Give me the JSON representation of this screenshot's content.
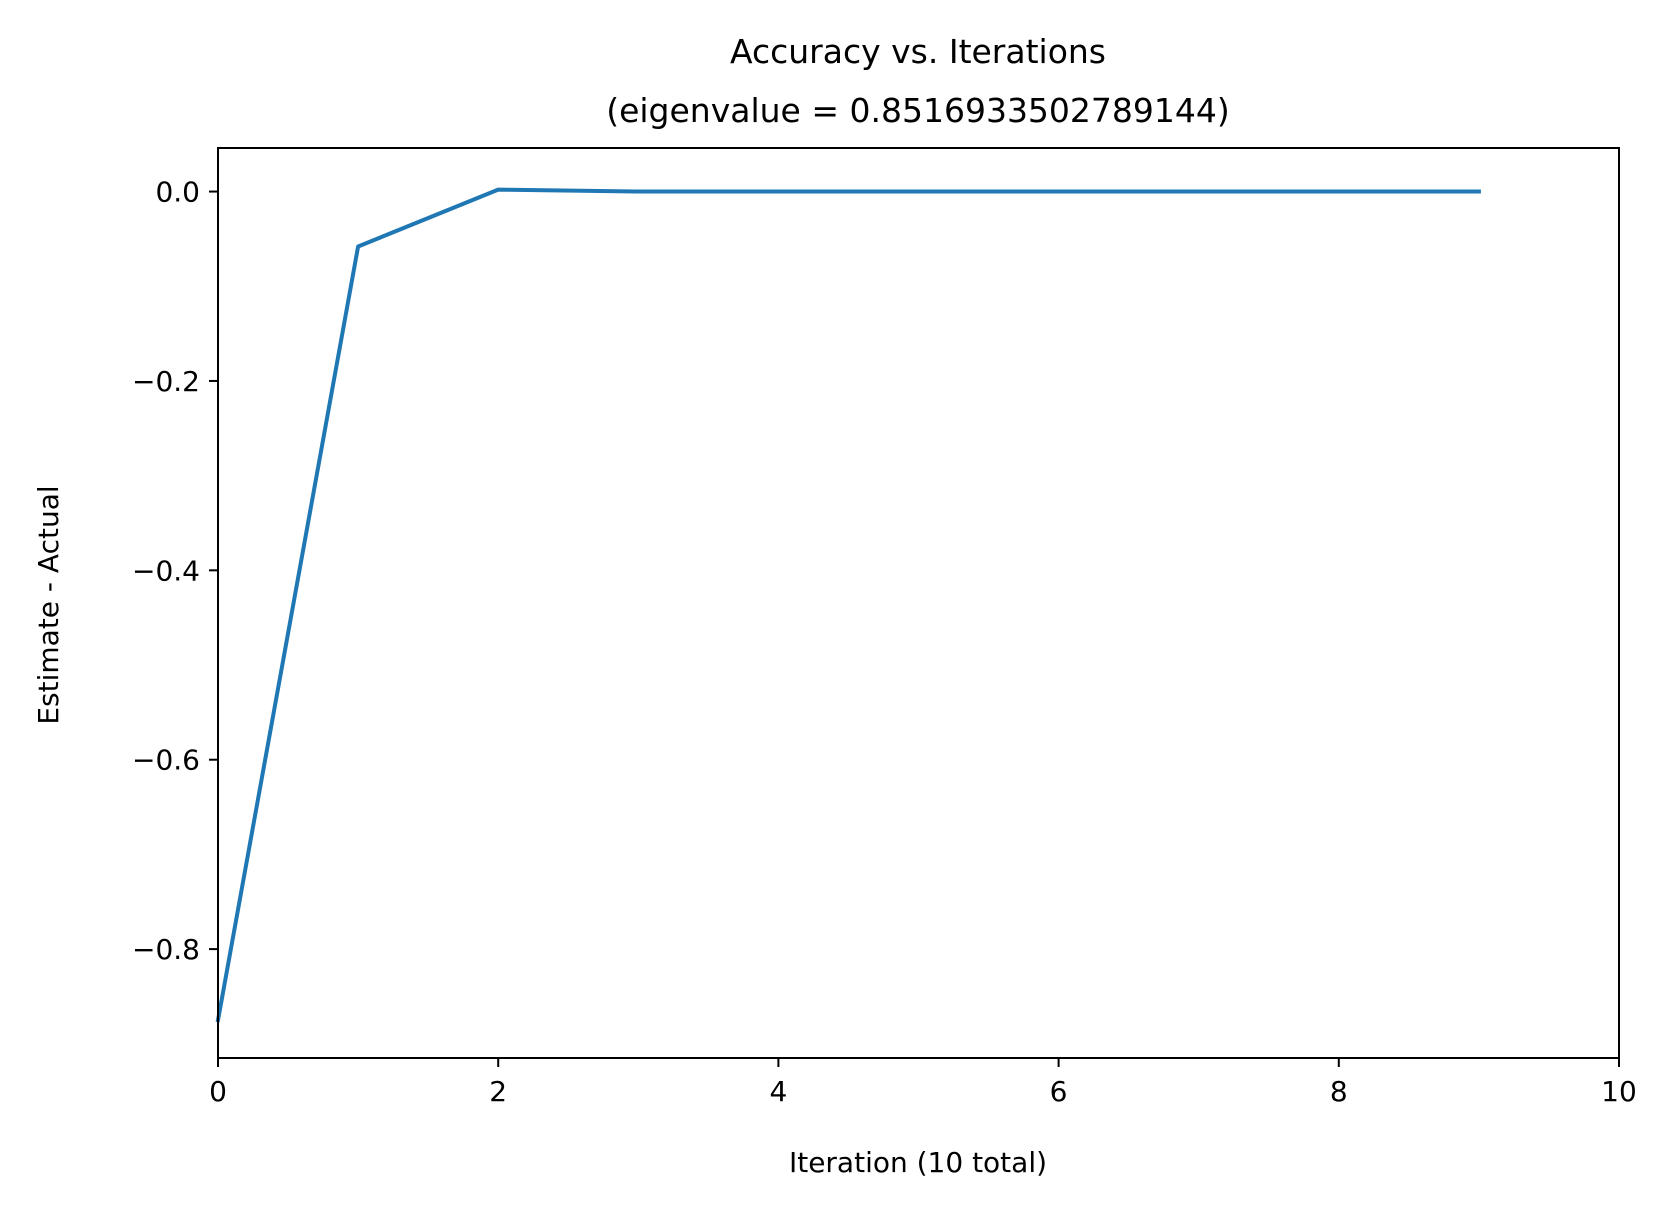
{
  "chart_data": {
    "type": "line",
    "title": "Accuracy vs. Iterations",
    "subtitle": "(eigenvalue = 0.8516933502789144)",
    "xlabel": "Iteration (10 total)",
    "ylabel": "Estimate - Actual",
    "xlim": [
      0,
      10
    ],
    "ylim": [
      -0.915,
      0.046
    ],
    "xticks": [
      0,
      2,
      4,
      6,
      8,
      10
    ],
    "xtick_labels": [
      "0",
      "2",
      "4",
      "6",
      "8",
      "10"
    ],
    "yticks": [
      0.0,
      -0.2,
      -0.4,
      -0.6,
      -0.8
    ],
    "ytick_labels": [
      "0.0",
      "−0.2",
      "−0.4",
      "−0.6",
      "−0.8"
    ],
    "grid": false,
    "series": [
      {
        "color": "#1f77b4",
        "x": [
          0,
          1,
          2,
          3,
          4,
          5,
          6,
          7,
          8,
          9
        ],
        "y": [
          -0.875,
          -0.058,
          0.002,
          0.0,
          0.0,
          0.0,
          0.0,
          0.0,
          0.0,
          0.0
        ]
      }
    ]
  }
}
